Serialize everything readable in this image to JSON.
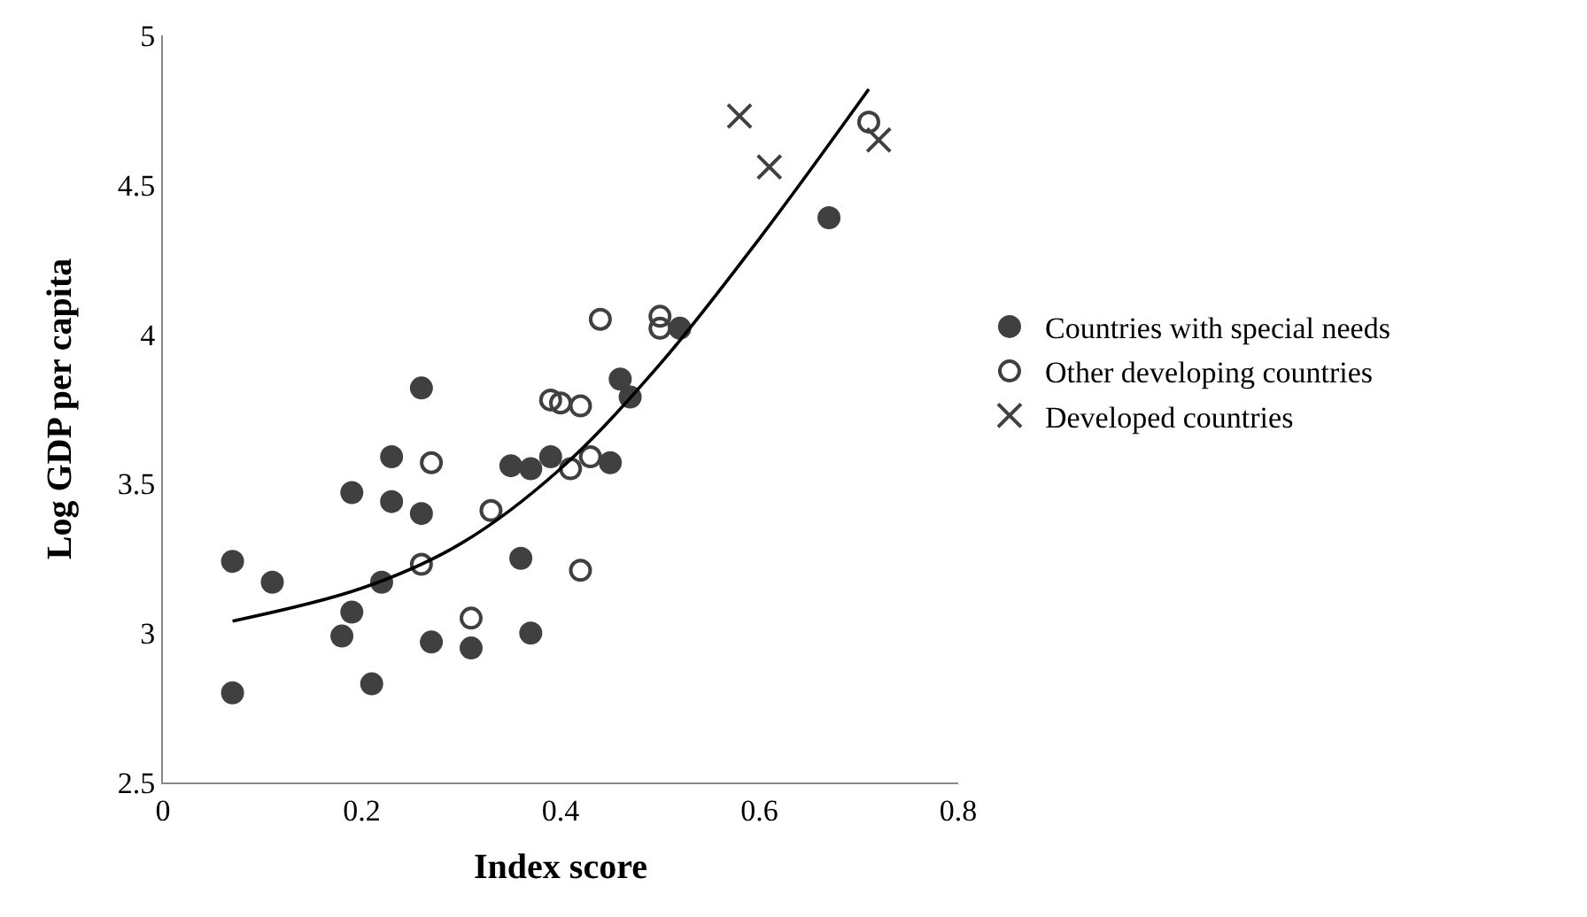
{
  "chart_data": {
    "type": "scatter",
    "xlabel": "Index score",
    "ylabel": "Log GDP per capita",
    "xlim": [
      0,
      0.8
    ],
    "xticks": [
      0,
      0.2,
      0.4,
      0.6,
      0.8
    ],
    "ylim": [
      2.5,
      5
    ],
    "yticks": [
      2.5,
      3,
      3.5,
      4,
      4.5,
      5
    ],
    "grid": false,
    "legend": "right",
    "series": [
      {
        "name": "Countries with special needs",
        "color": "#404040",
        "marker": "circle",
        "x": [
          0.07,
          0.07,
          0.11,
          0.18,
          0.19,
          0.19,
          0.21,
          0.22,
          0.23,
          0.23,
          0.26,
          0.26,
          0.27,
          0.31,
          0.35,
          0.36,
          0.37,
          0.37,
          0.39,
          0.46,
          0.47,
          0.45,
          0.52,
          0.67
        ],
        "values": [
          3.24,
          2.8,
          3.17,
          2.99,
          3.07,
          3.47,
          2.83,
          3.17,
          3.44,
          3.59,
          3.4,
          3.82,
          2.97,
          2.95,
          3.56,
          3.25,
          3.55,
          3.0,
          3.59,
          3.85,
          3.79,
          3.57,
          4.02,
          4.39
        ]
      },
      {
        "name": "Other developing countries",
        "color": "#404040",
        "marker": "circle-open",
        "x": [
          0.27,
          0.26,
          0.31,
          0.33,
          0.39,
          0.4,
          0.41,
          0.42,
          0.42,
          0.43,
          0.44,
          0.5,
          0.5,
          0.71
        ],
        "values": [
          3.57,
          3.23,
          3.05,
          3.41,
          3.78,
          3.77,
          3.55,
          3.76,
          3.21,
          3.59,
          4.05,
          4.06,
          4.02,
          4.71
        ]
      },
      {
        "name": "Developed countries",
        "color": "#404040",
        "marker": "cross",
        "x": [
          0.58,
          0.61,
          0.72
        ],
        "values": [
          4.73,
          4.56,
          4.65
        ]
      },
      {
        "type": "line",
        "color": "#000000",
        "marker": "none",
        "line_style": "solid",
        "x": [
          0.07,
          0.2,
          0.3,
          0.4,
          0.5,
          0.6,
          0.71
        ],
        "values": [
          3.04,
          3.15,
          3.3,
          3.55,
          3.9,
          4.32,
          4.82
        ]
      }
    ]
  }
}
